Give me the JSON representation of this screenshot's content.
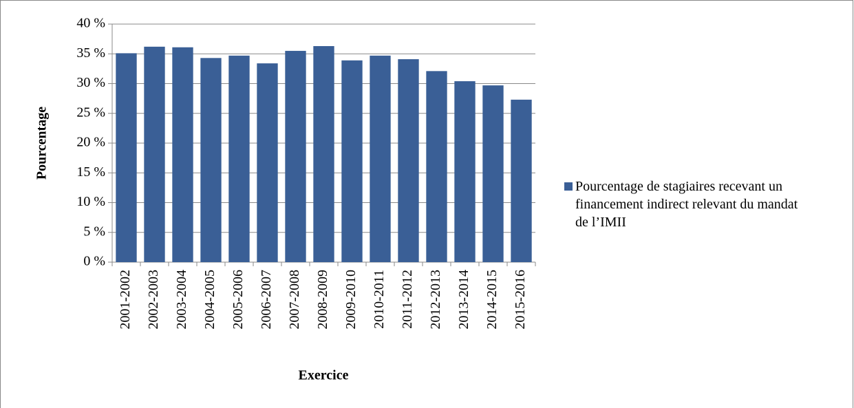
{
  "chart_data": {
    "type": "bar",
    "xlabel": "Exercice",
    "ylabel": "Pourcentage",
    "categories": [
      "2001-2002",
      "2002-2003",
      "2003-2004",
      "2004-2005",
      "2005-2006",
      "2006-2007",
      "2007-2008",
      "2008-2009",
      "2009-2010",
      "2010-2011",
      "2011-2012",
      "2012-2013",
      "2013-2014",
      "2014-2015",
      "2015-2016"
    ],
    "series": [
      {
        "name": "Pourcentage de stagiaires recevant un financement indirect relevant du mandat de l’IMII",
        "color": "#3a5f96",
        "values": [
          35.1,
          36.2,
          36.1,
          34.3,
          34.7,
          33.4,
          35.5,
          36.3,
          33.9,
          34.7,
          34.1,
          32.1,
          30.4,
          29.7,
          27.3
        ]
      }
    ],
    "ylim": [
      0,
      40
    ],
    "yticks": [
      {
        "value": 0,
        "label": "0 %"
      },
      {
        "value": 5,
        "label": "5 %"
      },
      {
        "value": 10,
        "label": "10 %"
      },
      {
        "value": 15,
        "label": "15 %"
      },
      {
        "value": 20,
        "label": "20 %"
      },
      {
        "value": 25,
        "label": "25 %"
      },
      {
        "value": 30,
        "label": "30 %"
      },
      {
        "value": 35,
        "label": "35 %"
      },
      {
        "value": 40,
        "label": "40 %"
      }
    ],
    "grid": true,
    "legend": "right"
  }
}
